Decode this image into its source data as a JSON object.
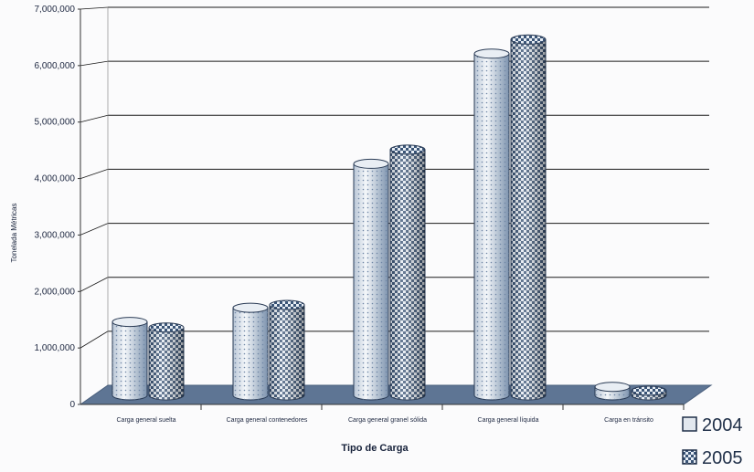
{
  "chart_data": {
    "type": "bar",
    "title": "",
    "xlabel": "Tipo de Carga",
    "ylabel": "Tonelada Métricas",
    "categories": [
      "Carga general suelta",
      "Carga general contenedores",
      "Carga general granel sólida",
      "Carga general líquida",
      "Carga en tránsito"
    ],
    "series": [
      {
        "name": "2004",
        "values": [
          1300000,
          1550000,
          4100000,
          6050000,
          150000
        ]
      },
      {
        "name": "2005",
        "values": [
          1200000,
          1600000,
          4350000,
          6300000,
          80000
        ]
      }
    ],
    "ylim": [
      0,
      7000000
    ],
    "yticks": [
      "0",
      "1,000,000",
      "2,000,000",
      "3,000,000",
      "4,000,000",
      "5,000,000",
      "6,000,000",
      "7,000,000"
    ],
    "grid": true,
    "legend_position": "bottom-right",
    "colors": {
      "series_2004": "#dfe6ef",
      "series_2005": "#3d5879",
      "floor": "#5e7594",
      "gridline": "#1a1a1a",
      "background": "#fbfbfc"
    }
  }
}
